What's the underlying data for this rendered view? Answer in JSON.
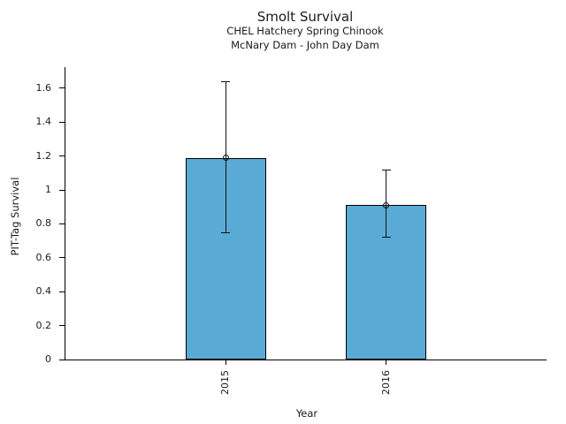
{
  "chart_data": {
    "type": "bar",
    "title": "Smolt Survival",
    "subtitle1": "CHEL Hatchery Spring Chinook",
    "subtitle2": "McNary Dam - John Day Dam",
    "xlabel": "Year",
    "ylabel": "PIT-Tag Survival",
    "categories": [
      "2015",
      "2016"
    ],
    "values": [
      1.19,
      0.91
    ],
    "error_low": [
      0.75,
      0.72
    ],
    "error_high": [
      1.64,
      1.12
    ],
    "ylim": [
      0,
      1.725
    ],
    "yticks": [
      {
        "value": 0,
        "label": "0"
      },
      {
        "value": 0.2,
        "label": "0.2"
      },
      {
        "value": 0.4,
        "label": "0.4"
      },
      {
        "value": 0.6,
        "label": "0.6"
      },
      {
        "value": 0.8,
        "label": "0.8"
      },
      {
        "value": 1,
        "label": "1"
      },
      {
        "value": 1.2,
        "label": "1.2"
      },
      {
        "value": 1.4,
        "label": "1.4"
      },
      {
        "value": 1.6,
        "label": "1.6"
      },
      {
        "value": 1.725,
        "label": ""
      }
    ],
    "grid": false,
    "legend": "none",
    "marker": "open-circle",
    "colors": {
      "bar_fill": "#5AAAD6",
      "bar_edge": "#000000",
      "error_bar": "#111111",
      "marker_ring": "#111111",
      "text": "#1a1a1a"
    }
  }
}
